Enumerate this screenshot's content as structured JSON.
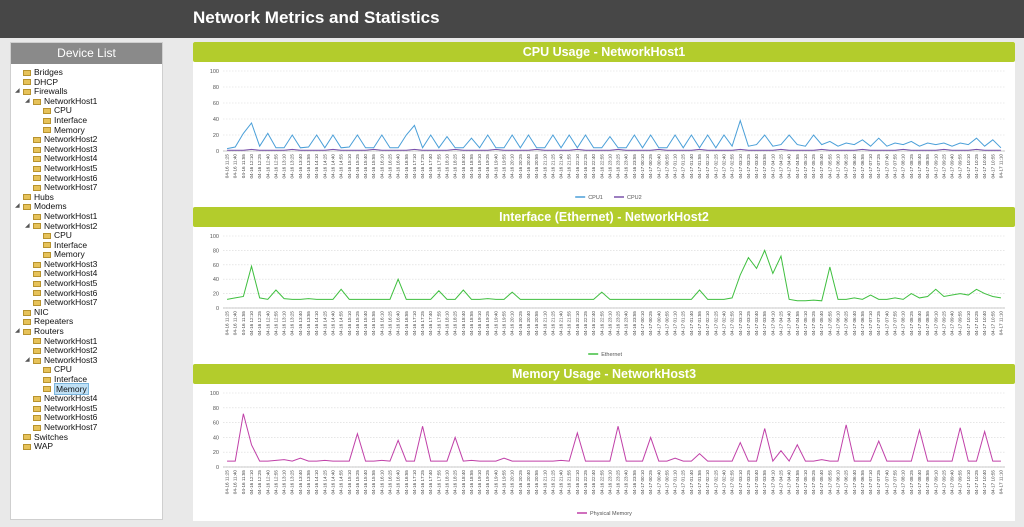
{
  "header": {
    "title": "Network Metrics and Statistics"
  },
  "sidebar": {
    "title": "Device List",
    "tree": [
      {
        "label": "Bridges"
      },
      {
        "label": "DHCP"
      },
      {
        "label": "Firewalls",
        "children": [
          {
            "label": "NetworkHost1",
            "children": [
              {
                "label": "CPU"
              },
              {
                "label": "Interface"
              },
              {
                "label": "Memory"
              }
            ]
          },
          {
            "label": "NetworkHost2"
          },
          {
            "label": "NetworkHost3"
          },
          {
            "label": "NetworkHost4"
          },
          {
            "label": "NetworkHost5"
          },
          {
            "label": "NetworkHost6"
          },
          {
            "label": "NetworkHost7"
          }
        ]
      },
      {
        "label": "Hubs"
      },
      {
        "label": "Modems",
        "children": [
          {
            "label": "NetworkHost1"
          },
          {
            "label": "NetworkHost2",
            "children": [
              {
                "label": "CPU"
              },
              {
                "label": "Interface"
              },
              {
                "label": "Memory"
              }
            ]
          },
          {
            "label": "NetworkHost3"
          },
          {
            "label": "NetworkHost4"
          },
          {
            "label": "NetworkHost5"
          },
          {
            "label": "NetworkHost6"
          },
          {
            "label": "NetworkHost7"
          }
        ]
      },
      {
        "label": "NIC"
      },
      {
        "label": "Repeaters"
      },
      {
        "label": "Routers",
        "children": [
          {
            "label": "NetworkHost1"
          },
          {
            "label": "NetworkHost2"
          },
          {
            "label": "NetworkHost3",
            "children": [
              {
                "label": "CPU"
              },
              {
                "label": "Interface"
              },
              {
                "label": "Memory",
                "selected": true
              }
            ]
          },
          {
            "label": "NetworkHost4"
          },
          {
            "label": "NetworkHost5"
          },
          {
            "label": "NetworkHost6"
          },
          {
            "label": "NetworkHost7"
          }
        ]
      },
      {
        "label": "Switches"
      },
      {
        "label": "WAP"
      }
    ]
  },
  "chart_data": [
    {
      "type": "line",
      "title": "CPU Usage - NetworkHost1",
      "ylim": [
        0,
        100
      ],
      "yticks": [
        0,
        20,
        40,
        60,
        80,
        100
      ],
      "grid": true,
      "legend": "bottom",
      "categories": [
        "04-16 11:25",
        "04-16 11:40",
        "04-16 11:55",
        "04-16 12:10",
        "04-16 12:25",
        "04-16 12:40",
        "04-16 12:55",
        "04-16 13:10",
        "04-16 13:25",
        "04-16 13:40",
        "04-16 13:55",
        "04-16 14:10",
        "04-16 14:25",
        "04-16 14:40",
        "04-16 14:55",
        "04-16 15:10",
        "04-16 15:25",
        "04-16 15:40",
        "04-16 15:55",
        "04-16 16:10",
        "04-16 16:25",
        "04-16 16:40",
        "04-16 16:55",
        "04-16 17:10",
        "04-16 17:25",
        "04-16 17:40",
        "04-16 17:55",
        "04-16 18:10",
        "04-16 18:25",
        "04-16 18:40",
        "04-16 18:55",
        "04-16 19:10",
        "04-16 19:25",
        "04-16 19:40",
        "04-16 19:55",
        "04-16 20:10",
        "04-16 20:25",
        "04-16 20:40",
        "04-16 20:55",
        "04-16 21:10",
        "04-16 21:25",
        "04-16 21:40",
        "04-16 21:55",
        "04-16 22:10",
        "04-16 22:25",
        "04-16 22:40",
        "04-16 22:55",
        "04-16 23:10",
        "04-16 23:25",
        "04-16 23:40",
        "04-16 23:55",
        "04-17 00:10",
        "04-17 00:25",
        "04-17 00:40",
        "04-17 00:55",
        "04-17 01:10",
        "04-17 01:25",
        "04-17 01:40",
        "04-17 01:55",
        "04-17 02:10",
        "04-17 02:25",
        "04-17 02:40",
        "04-17 02:55",
        "04-17 03:10",
        "04-17 03:25",
        "04-17 03:40",
        "04-17 03:55",
        "04-17 04:10",
        "04-17 04:25",
        "04-17 04:40",
        "04-17 04:55",
        "04-17 05:10",
        "04-17 05:25",
        "04-17 05:40",
        "04-17 05:55",
        "04-17 06:10",
        "04-17 06:25",
        "04-17 06:40",
        "04-17 06:55",
        "04-17 07:10",
        "04-17 07:25",
        "04-17 07:40",
        "04-17 07:55",
        "04-17 08:10",
        "04-17 08:25",
        "04-17 08:40",
        "04-17 08:55",
        "04-17 09:10",
        "04-17 09:25",
        "04-17 09:40",
        "04-17 09:55",
        "04-17 10:10",
        "04-17 10:25",
        "04-17 10:40",
        "04-17 10:55",
        "04-17 11:10"
      ],
      "series": [
        {
          "name": "CPU1",
          "color": "#4a9fd8",
          "values": [
            3,
            5,
            22,
            35,
            6,
            22,
            4,
            4,
            20,
            4,
            5,
            20,
            4,
            20,
            4,
            5,
            20,
            4,
            4,
            20,
            4,
            4,
            20,
            32,
            4,
            20,
            4,
            18,
            4,
            4,
            16,
            4,
            20,
            4,
            4,
            20,
            4,
            20,
            4,
            4,
            20,
            4,
            20,
            4,
            20,
            4,
            4,
            18,
            4,
            4,
            20,
            4,
            20,
            4,
            4,
            20,
            4,
            20,
            4,
            20,
            4,
            20,
            6,
            38,
            6,
            8,
            20,
            6,
            8,
            20,
            8,
            6,
            20,
            8,
            12,
            6,
            10,
            8,
            14,
            6,
            16,
            6,
            10,
            8,
            12,
            6,
            10,
            8,
            10,
            6,
            10,
            8,
            16,
            6,
            14,
            4
          ]
        },
        {
          "name": "CPU2",
          "color": "#7b52ab",
          "values": [
            1,
            1,
            1,
            2,
            1,
            1,
            1,
            1,
            2,
            1,
            1,
            1,
            1,
            2,
            1,
            1,
            1,
            1,
            2,
            1,
            1,
            1,
            1,
            2,
            1,
            1,
            1,
            1,
            2,
            1,
            1,
            1,
            1,
            2,
            1,
            1,
            1,
            1,
            2,
            1,
            1,
            1,
            1,
            2,
            1,
            1,
            1,
            1,
            2,
            1,
            1,
            1,
            1,
            2,
            1,
            1,
            1,
            1,
            2,
            1,
            1,
            1,
            1,
            2,
            1,
            1,
            1,
            1,
            2,
            1,
            1,
            1,
            1,
            2,
            1,
            1,
            1,
            1,
            2,
            1,
            1,
            1,
            1,
            2,
            1,
            1,
            1,
            1,
            2,
            1,
            1,
            1,
            2,
            1,
            1,
            1
          ]
        }
      ]
    },
    {
      "type": "line",
      "title": "Interface (Ethernet) - NetworkHost2",
      "ylim": [
        0,
        100
      ],
      "yticks": [
        0,
        20,
        40,
        60,
        80,
        100
      ],
      "grid": true,
      "legend": "bottom",
      "categories": [
        "04-16 11:25",
        "04-16 11:40",
        "04-16 11:55",
        "04-16 12:10",
        "04-16 12:25",
        "04-16 12:40",
        "04-16 12:55",
        "04-16 13:10",
        "04-16 13:25",
        "04-16 13:40",
        "04-16 13:55",
        "04-16 14:10",
        "04-16 14:25",
        "04-16 14:40",
        "04-16 14:55",
        "04-16 15:10",
        "04-16 15:25",
        "04-16 15:40",
        "04-16 15:55",
        "04-16 16:10",
        "04-16 16:25",
        "04-16 16:40",
        "04-16 16:55",
        "04-16 17:10",
        "04-16 17:25",
        "04-16 17:40",
        "04-16 17:55",
        "04-16 18:10",
        "04-16 18:25",
        "04-16 18:40",
        "04-16 18:55",
        "04-16 19:10",
        "04-16 19:25",
        "04-16 19:40",
        "04-16 19:55",
        "04-16 20:10",
        "04-16 20:25",
        "04-16 20:40",
        "04-16 20:55",
        "04-16 21:10",
        "04-16 21:25",
        "04-16 21:40",
        "04-16 21:55",
        "04-16 22:10",
        "04-16 22:25",
        "04-16 22:40",
        "04-16 22:55",
        "04-16 23:10",
        "04-16 23:25",
        "04-16 23:40",
        "04-16 23:55",
        "04-17 00:10",
        "04-17 00:25",
        "04-17 00:40",
        "04-17 00:55",
        "04-17 01:10",
        "04-17 01:25",
        "04-17 01:40",
        "04-17 01:55",
        "04-17 02:10",
        "04-17 02:25",
        "04-17 02:40",
        "04-17 02:55",
        "04-17 03:10",
        "04-17 03:25",
        "04-17 03:40",
        "04-17 03:55",
        "04-17 04:10",
        "04-17 04:25",
        "04-17 04:40",
        "04-17 04:55",
        "04-17 05:10",
        "04-17 05:25",
        "04-17 05:40",
        "04-17 05:55",
        "04-17 06:10",
        "04-17 06:25",
        "04-17 06:40",
        "04-17 06:55",
        "04-17 07:10",
        "04-17 07:25",
        "04-17 07:40",
        "04-17 07:55",
        "04-17 08:10",
        "04-17 08:25",
        "04-17 08:40",
        "04-17 08:55",
        "04-17 09:10",
        "04-17 09:25",
        "04-17 09:40",
        "04-17 09:55",
        "04-17 10:10",
        "04-17 10:25",
        "04-17 10:40",
        "04-17 10:55",
        "04-17 11:10"
      ],
      "series": [
        {
          "name": "Ethernet",
          "color": "#3fbf3f",
          "values": [
            12,
            14,
            16,
            58,
            14,
            12,
            25,
            13,
            12,
            12,
            13,
            12,
            12,
            12,
            26,
            12,
            12,
            12,
            12,
            12,
            12,
            40,
            12,
            12,
            12,
            12,
            24,
            12,
            12,
            25,
            12,
            12,
            13,
            12,
            12,
            22,
            12,
            12,
            12,
            12,
            12,
            12,
            12,
            12,
            12,
            12,
            22,
            12,
            12,
            12,
            12,
            12,
            12,
            12,
            12,
            12,
            12,
            12,
            25,
            12,
            12,
            12,
            14,
            46,
            70,
            55,
            80,
            48,
            72,
            12,
            10,
            10,
            11,
            10,
            57,
            12,
            12,
            14,
            12,
            18,
            12,
            12,
            14,
            12,
            20,
            14,
            16,
            26,
            16,
            18,
            20,
            18,
            26,
            20,
            16,
            14
          ]
        }
      ]
    },
    {
      "type": "line",
      "title": "Memory Usage - NetworkHost3",
      "ylim": [
        0,
        100
      ],
      "yticks": [
        0,
        20,
        40,
        60,
        80,
        100
      ],
      "grid": true,
      "legend": "bottom",
      "categories": [
        "04-16 11:25",
        "04-16 11:40",
        "04-16 11:55",
        "04-16 12:10",
        "04-16 12:25",
        "04-16 12:40",
        "04-16 12:55",
        "04-16 13:10",
        "04-16 13:25",
        "04-16 13:40",
        "04-16 13:55",
        "04-16 14:10",
        "04-16 14:25",
        "04-16 14:40",
        "04-16 14:55",
        "04-16 15:10",
        "04-16 15:25",
        "04-16 15:40",
        "04-16 15:55",
        "04-16 16:10",
        "04-16 16:25",
        "04-16 16:40",
        "04-16 16:55",
        "04-16 17:10",
        "04-16 17:25",
        "04-16 17:40",
        "04-16 17:55",
        "04-16 18:10",
        "04-16 18:25",
        "04-16 18:40",
        "04-16 18:55",
        "04-16 19:10",
        "04-16 19:25",
        "04-16 19:40",
        "04-16 19:55",
        "04-16 20:10",
        "04-16 20:25",
        "04-16 20:40",
        "04-16 20:55",
        "04-16 21:10",
        "04-16 21:25",
        "04-16 21:40",
        "04-16 21:55",
        "04-16 22:10",
        "04-16 22:25",
        "04-16 22:40",
        "04-16 22:55",
        "04-16 23:10",
        "04-16 23:25",
        "04-16 23:40",
        "04-16 23:55",
        "04-17 00:10",
        "04-17 00:25",
        "04-17 00:40",
        "04-17 00:55",
        "04-17 01:10",
        "04-17 01:25",
        "04-17 01:40",
        "04-17 01:55",
        "04-17 02:10",
        "04-17 02:25",
        "04-17 02:40",
        "04-17 02:55",
        "04-17 03:10",
        "04-17 03:25",
        "04-17 03:40",
        "04-17 03:55",
        "04-17 04:10",
        "04-17 04:25",
        "04-17 04:40",
        "04-17 04:55",
        "04-17 05:10",
        "04-17 05:25",
        "04-17 05:40",
        "04-17 05:55",
        "04-17 06:10",
        "04-17 06:25",
        "04-17 06:40",
        "04-17 06:55",
        "04-17 07:10",
        "04-17 07:25",
        "04-17 07:40",
        "04-17 07:55",
        "04-17 08:10",
        "04-17 08:25",
        "04-17 08:40",
        "04-17 08:55",
        "04-17 09:10",
        "04-17 09:25",
        "04-17 09:40",
        "04-17 09:55",
        "04-17 10:10",
        "04-17 10:25",
        "04-17 10:40",
        "04-17 10:55",
        "04-17 11:10"
      ],
      "series": [
        {
          "name": "Physical Memory",
          "color": "#c040a8",
          "values": [
            8,
            8,
            72,
            30,
            8,
            8,
            9,
            10,
            8,
            12,
            8,
            8,
            9,
            8,
            8,
            8,
            45,
            8,
            8,
            9,
            8,
            36,
            8,
            8,
            55,
            8,
            8,
            8,
            40,
            8,
            9,
            8,
            8,
            8,
            12,
            8,
            8,
            8,
            8,
            8,
            8,
            9,
            8,
            46,
            8,
            8,
            8,
            8,
            55,
            8,
            8,
            8,
            40,
            8,
            8,
            12,
            8,
            8,
            18,
            8,
            8,
            8,
            8,
            33,
            8,
            8,
            52,
            8,
            22,
            8,
            30,
            8,
            8,
            10,
            8,
            8,
            57,
            8,
            8,
            8,
            35,
            8,
            8,
            8,
            8,
            50,
            8,
            8,
            8,
            8,
            53,
            8,
            8,
            48,
            8,
            8
          ]
        }
      ]
    }
  ]
}
